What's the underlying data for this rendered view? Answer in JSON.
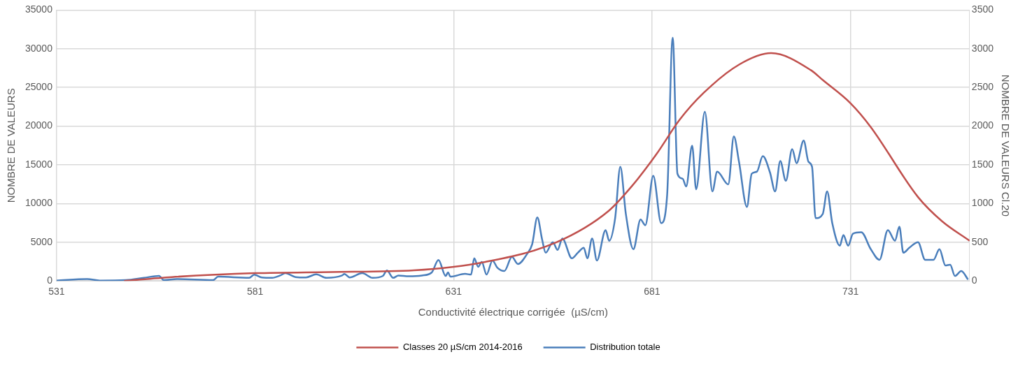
{
  "chart_data": {
    "type": "line",
    "xlabel": "Conductivité électrique corrigée  (µS/cm)",
    "ylabel": "NOMBRE DE VALEURS",
    "y2label": "NOMBRE DE VALEURS Cl.20",
    "xlim": [
      531,
      761
    ],
    "xticks": [
      531,
      581,
      631,
      681,
      731
    ],
    "ylim": [
      0,
      35000
    ],
    "yticks": [
      0,
      5000,
      10000,
      15000,
      20000,
      25000,
      30000,
      35000
    ],
    "y2lim": [
      0,
      3500
    ],
    "y2ticks": [
      0,
      500,
      1000,
      1500,
      2000,
      2500,
      3000,
      3500
    ],
    "grid": true,
    "legend": "bottom",
    "marker": "none",
    "line_style": "solid",
    "series": [
      {
        "name": "Classes 20 µS/cm 2014-2016",
        "color": "#c0504d",
        "axis": "y2",
        "x": [
          548,
          560,
          581,
          600,
          621,
          639,
          657,
          670,
          676,
          682,
          688,
          694,
          703,
          711,
          721,
          724,
          731,
          736,
          748,
          754,
          761
        ],
        "values": [
          0,
          50,
          100,
          115,
          137,
          246,
          501,
          902,
          1230,
          1630,
          2086,
          2430,
          2797,
          2943,
          2724,
          2596,
          2296,
          1995,
          1084,
          774,
          519
        ]
      },
      {
        "name": "Distribution totale",
        "color": "#4a7ebb",
        "x": [
          531,
          538.7,
          541.9,
          548.4,
          553,
          556.8,
          558,
          561.3,
          570.4,
          571.7,
          579.5,
          580.8,
          582.7,
          585.3,
          587.3,
          588.6,
          591.2,
          593.8,
          596.4,
          599,
          602.9,
          603.5,
          604.8,
          608,
          610.6,
          613.2,
          614.2,
          615.8,
          617.1,
          619.7,
          623,
          625.5,
          627.2,
          629,
          629.6,
          630.2,
          633.9,
          635.4,
          636.2,
          637.2,
          638.1,
          639.3,
          640.8,
          642,
          643.8,
          645.7,
          647.2,
          649.6,
          650.8,
          652.1,
          653.3,
          654.2,
          656,
          657.2,
          658.4,
          660.8,
          662.3,
          663.8,
          664.7,
          665.9,
          667.1,
          669.3,
          670.2,
          671.7,
          673,
          674.4,
          676.3,
          678.1,
          679.3,
          681.3,
          683.3,
          684.8,
          686.2,
          687.4,
          688.7,
          689.6,
          691.1,
          692.1,
          694.3,
          696.2,
          697.4,
          700.2,
          701.6,
          702.9,
          704.9,
          706.1,
          707.4,
          708.9,
          710.7,
          712,
          713.3,
          714.7,
          716.3,
          717.4,
          719.2,
          720.4,
          721.3,
          722.2,
          724,
          725.1,
          726.4,
          728.3,
          729.2,
          730.4,
          731.6,
          733.7,
          736.1,
          738.3,
          740.4,
          742.2,
          743.3,
          744.3,
          745.8,
          748,
          749.8,
          751.9,
          753.4,
          754.9,
          756.1,
          757.3,
          758.9,
          760.6
        ],
        "values": [
          50,
          250,
          50,
          100,
          400,
          650,
          100,
          250,
          100,
          550,
          400,
          800,
          450,
          400,
          700,
          1000,
          500,
          450,
          850,
          400,
          700,
          900,
          450,
          1000,
          400,
          650,
          1350,
          400,
          700,
          600,
          700,
          1100,
          2700,
          640,
          1090,
          550,
          910,
          820,
          2920,
          1820,
          2460,
          820,
          2640,
          1730,
          1280,
          3100,
          2190,
          3550,
          4740,
          8200,
          5370,
          3640,
          5010,
          4010,
          5470,
          2920,
          3640,
          4280,
          2920,
          5470,
          2640,
          6560,
          5190,
          8110,
          14760,
          8650,
          4100,
          7930,
          7200,
          13570,
          7470,
          11110,
          31430,
          13850,
          13210,
          12210,
          17490,
          11840,
          21860,
          11570,
          14120,
          12480,
          18680,
          15400,
          9570,
          13850,
          14120,
          16120,
          14030,
          11570,
          15490,
          12940,
          17040,
          15210,
          18130,
          15400,
          14760,
          8110,
          8650,
          11570,
          7470,
          4560,
          5920,
          4560,
          6100,
          6290,
          4100,
          2730,
          6560,
          5190,
          7010,
          3640,
          4280,
          5010,
          2730,
          2730,
          4100,
          2000,
          2100,
          640,
          1280,
          180
        ]
      }
    ]
  }
}
